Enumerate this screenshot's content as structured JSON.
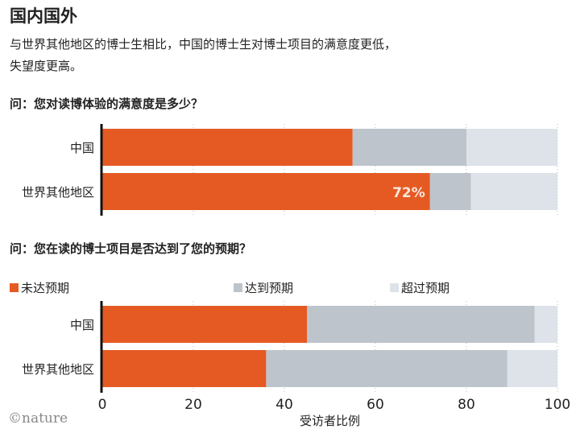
{
  "title": "国内国外",
  "subtitle": [
    "与世界其他地区的博士生相比，中国的博士生对博士项目的满意度更低，",
    "失望度更高。"
  ],
  "logo": "©nature",
  "colors": {
    "unmet": "#e55a23",
    "met": "#bdc4cb",
    "exceeded": "#dde3e9"
  },
  "chart_data": [
    {
      "type": "bar",
      "stacked": true,
      "orientation": "horizontal",
      "title": "问：您对读博体验的满意度是多少？",
      "categories": [
        "中国",
        "世界其他地区"
      ],
      "series": [
        {
          "values": [
            55,
            72
          ]
        },
        {
          "values": [
            25,
            9
          ]
        },
        {
          "values": [
            20,
            19
          ]
        }
      ],
      "annotations": [
        {
          "category": "世界其他地区",
          "text": "72%"
        }
      ],
      "xlim": [
        0,
        100
      ],
      "grid": true
    },
    {
      "type": "bar",
      "stacked": true,
      "orientation": "horizontal",
      "title": "问：您在读的博士项目是否达到了您的预期？",
      "categories": [
        "中国",
        "世界其他地区"
      ],
      "series": [
        {
          "name": "未达预期",
          "values": [
            45,
            36
          ]
        },
        {
          "name": "达到预期",
          "values": [
            50,
            53
          ]
        },
        {
          "name": "超过预期",
          "values": [
            5,
            11
          ]
        }
      ],
      "xlabel": "受访者比例",
      "xticks": [
        "0",
        "20",
        "40",
        "60",
        "80",
        "100"
      ],
      "xlim": [
        0,
        100
      ],
      "grid": true,
      "legend": "top"
    }
  ]
}
